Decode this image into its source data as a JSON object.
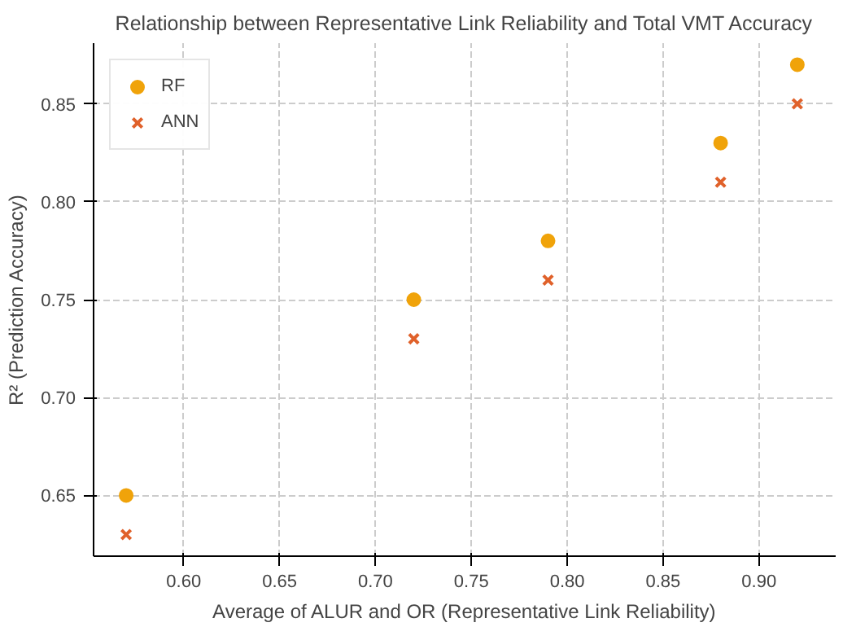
{
  "chart_data": {
    "type": "scatter",
    "title": "Relationship between Representative Link Reliability and Total VMT Accuracy",
    "xlabel": "Average of ALUR and OR (Representative Link Reliability)",
    "ylabel": "R² (Prediction Accuracy)",
    "x": [
      0.57,
      0.72,
      0.79,
      0.88,
      0.92
    ],
    "series": [
      {
        "name": "RF",
        "color": "#f0a30a",
        "marker": "circle",
        "values": [
          0.65,
          0.75,
          0.78,
          0.83,
          0.87
        ]
      },
      {
        "name": "ANN",
        "color": "#e0612a",
        "marker": "cross",
        "values": [
          0.63,
          0.73,
          0.76,
          0.81,
          0.85
        ]
      }
    ],
    "xlim": [
      0.553,
      0.94
    ],
    "ylim": [
      0.619,
      0.881
    ],
    "xticks": [
      {
        "value": 0.6,
        "label": "0.60"
      },
      0.65,
      {
        "value": 0.7,
        "label": "0.70"
      },
      0.75,
      {
        "value": 0.8,
        "label": "0.80"
      },
      0.85,
      {
        "value": 0.9,
        "label": "0.90"
      }
    ],
    "yticks": [
      0.65,
      {
        "value": 0.7,
        "label": "0.70"
      },
      0.75,
      {
        "value": 0.8,
        "label": "0.80"
      },
      0.85
    ],
    "grid": true,
    "legend": "top left"
  }
}
